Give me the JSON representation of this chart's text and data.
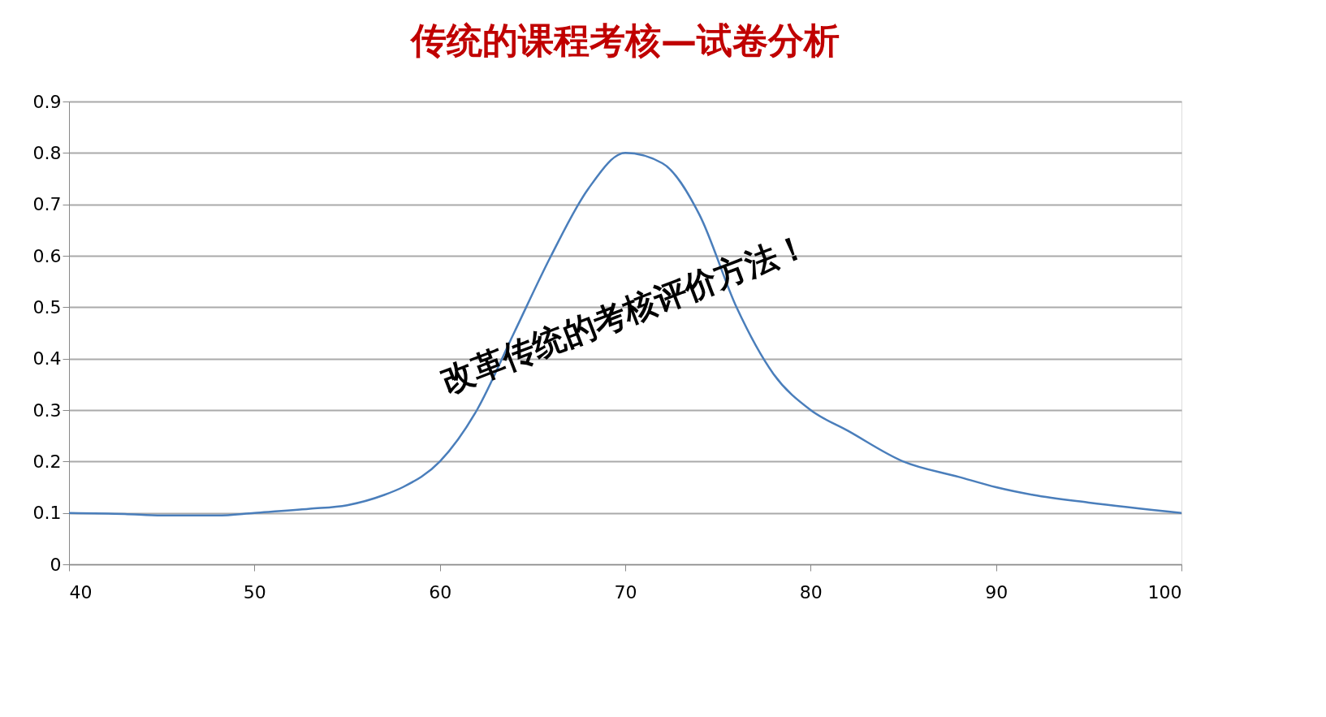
{
  "chart_data": {
    "type": "line",
    "title": "传统的课程考核—试卷分析",
    "x": [
      40,
      43,
      45,
      48,
      50,
      53,
      55,
      57,
      58,
      60,
      62,
      64,
      66,
      68,
      70,
      72,
      74,
      76,
      78,
      80,
      82,
      85,
      88,
      90,
      92,
      95,
      100
    ],
    "series": [
      {
        "color": "#4a7ebb",
        "values": [
          0.1,
          0.098,
          0.095,
          0.095,
          0.1,
          0.108,
          0.115,
          0.135,
          0.15,
          0.2,
          0.3,
          0.45,
          0.6,
          0.73,
          0.8,
          0.78,
          0.68,
          0.5,
          0.37,
          0.3,
          0.26,
          0.2,
          0.17,
          0.15,
          0.135,
          0.12,
          0.1
        ]
      }
    ],
    "xlim": [
      40,
      100
    ],
    "xticks": [
      40,
      50,
      60,
      70,
      80,
      90,
      100
    ],
    "ylim": [
      0,
      0.9
    ],
    "yticks": [
      0,
      0.1,
      0.2,
      0.3,
      0.4,
      0.5,
      0.6,
      0.7,
      0.8,
      0.9
    ],
    "grid": "y",
    "marker": "none",
    "line_style": "solid",
    "annotations": [
      "改革传统的考核评价方法！"
    ]
  }
}
